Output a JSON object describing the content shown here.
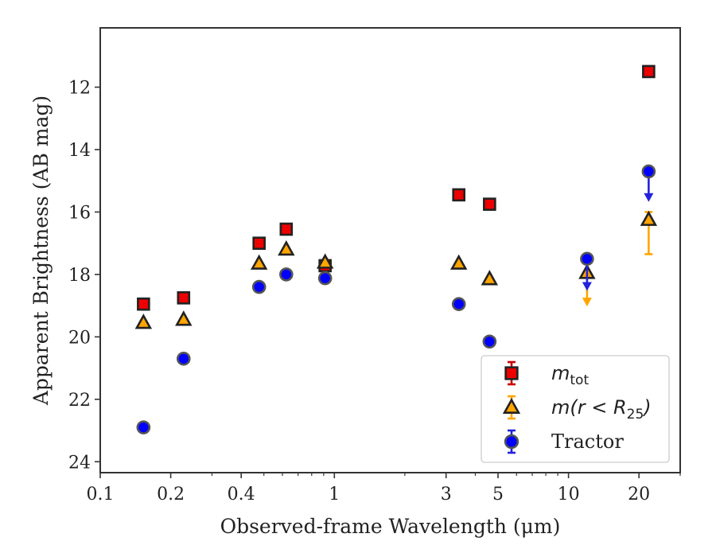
{
  "chart_data": {
    "type": "scatter",
    "xlabel": "Observed-frame Wavelength (μm)",
    "ylabel": "Apparent Brightness (AB mag)",
    "xscale": "log",
    "xlim": [
      0.1,
      30
    ],
    "ylim": [
      24.35,
      10.1
    ],
    "y_inverted": true,
    "xticks": [
      {
        "value": 0.1,
        "label": "0.1"
      },
      {
        "value": 0.2,
        "label": "0.2"
      },
      {
        "value": 0.4,
        "label": "0.4"
      },
      {
        "value": 1,
        "label": "1"
      },
      {
        "value": 3,
        "label": "3"
      },
      {
        "value": 5,
        "label": "5"
      },
      {
        "value": 10,
        "label": "10"
      },
      {
        "value": 20,
        "label": "20"
      }
    ],
    "yticks": [
      {
        "value": 12,
        "label": "12"
      },
      {
        "value": 14,
        "label": "14"
      },
      {
        "value": 16,
        "label": "16"
      },
      {
        "value": 18,
        "label": "18"
      },
      {
        "value": 20,
        "label": "20"
      },
      {
        "value": 22,
        "label": "22"
      },
      {
        "value": 24,
        "label": "24"
      }
    ],
    "grid": false,
    "legend_position": "lower-right",
    "series": [
      {
        "name": "m_tot",
        "label_main": "m",
        "label_sub": "tot",
        "marker": "square",
        "face_color": "#ee0000",
        "edge_color": "#222222",
        "error_color": "#cc0000",
        "points": [
          {
            "x": 0.153,
            "y": 18.95,
            "err": 0.05
          },
          {
            "x": 0.227,
            "y": 18.75,
            "err": 0.05
          },
          {
            "x": 0.477,
            "y": 17.0,
            "err": 0.05
          },
          {
            "x": 0.623,
            "y": 16.55,
            "err": 0.05
          },
          {
            "x": 0.913,
            "y": 17.72,
            "err": 0.05
          },
          {
            "x": 3.4,
            "y": 15.45,
            "err": 0.05
          },
          {
            "x": 4.6,
            "y": 15.75,
            "err": 0.05
          },
          {
            "x": 22.0,
            "y": 11.5,
            "err": 0.05
          }
        ]
      },
      {
        "name": "m(r<R25)",
        "label_main": "m(r < R",
        "label_sub": "25",
        "label_tail": ")",
        "marker": "triangle",
        "face_color": "#ffa500",
        "edge_color": "#222222",
        "error_color": "#ffa500",
        "points": [
          {
            "x": 0.153,
            "y": 19.55,
            "err": 0.05
          },
          {
            "x": 0.227,
            "y": 19.45,
            "err": 0.05
          },
          {
            "x": 0.477,
            "y": 17.65,
            "err": 0.05
          },
          {
            "x": 0.623,
            "y": 17.2,
            "err": 0.05
          },
          {
            "x": 0.913,
            "y": 17.62,
            "err": 0.05
          },
          {
            "x": 3.4,
            "y": 17.65,
            "err": 0.05
          },
          {
            "x": 4.6,
            "y": 18.15,
            "err": 0.05
          },
          {
            "x": 12.0,
            "y": 17.95,
            "err": 0.05,
            "upper_limit": true,
            "arrow_to": 18.95
          },
          {
            "x": 22.0,
            "y": 16.25,
            "err_low": 1.1,
            "err_high": 0.25
          }
        ]
      },
      {
        "name": "Tractor",
        "label_main": "Tractor",
        "marker": "circle",
        "face_color": "#0000ff",
        "edge_color": "#555555",
        "error_color": "#2222dd",
        "points": [
          {
            "x": 0.153,
            "y": 22.9,
            "err": 0.05
          },
          {
            "x": 0.227,
            "y": 20.7,
            "err": 0.05
          },
          {
            "x": 0.477,
            "y": 18.4,
            "err": 0.05
          },
          {
            "x": 0.623,
            "y": 18.0,
            "err": 0.05
          },
          {
            "x": 0.913,
            "y": 18.12,
            "err": 0.05
          },
          {
            "x": 3.4,
            "y": 18.95,
            "err": 0.05
          },
          {
            "x": 4.6,
            "y": 20.15,
            "err": 0.05
          },
          {
            "x": 12.0,
            "y": 17.5,
            "err": 0.05,
            "upper_limit": true,
            "arrow_to": 18.45
          },
          {
            "x": 22.0,
            "y": 14.7,
            "err": 0.05,
            "upper_limit": true,
            "arrow_to": 15.6
          }
        ]
      }
    ]
  }
}
